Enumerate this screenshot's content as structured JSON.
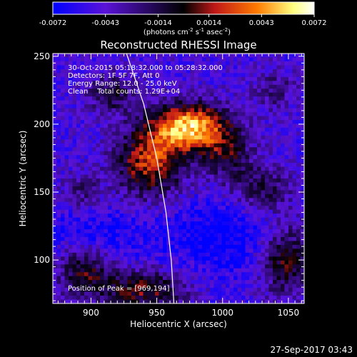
{
  "chart_data": {
    "type": "heatmap",
    "title": "Reconstructed RHESSI Image",
    "xlabel": "Heliocentric X (arcsec)",
    "ylabel": "Heliocentric Y (arcsec)",
    "xlim": [
      871,
      1062
    ],
    "ylim": [
      68,
      252
    ],
    "x_ticks": [
      "900",
      "950",
      "1000",
      "1050"
    ],
    "x_tick_values": [
      900,
      950,
      1000,
      1050
    ],
    "y_ticks": [
      "100",
      "150",
      "200",
      "250"
    ],
    "y_tick_values": [
      100,
      150,
      200,
      250
    ],
    "colorbar": {
      "tick_labels": [
        "-0.0072",
        "-0.0043",
        "-0.0014",
        "0.0014",
        "0.0043",
        "0.0072"
      ],
      "tick_values": [
        -0.0072,
        -0.0043,
        -0.0014,
        0.0014,
        0.0043,
        0.0072
      ],
      "range": [
        -0.0072,
        0.0072
      ],
      "colors": [
        "#0000ff",
        "#5a12d8",
        "#000000",
        "#c01818",
        "#ff7a00",
        "#ffff80",
        "#ffffff"
      ],
      "unit_parts": [
        "(photons cm",
        "-2",
        " s",
        "-1",
        " asec",
        "-2",
        ")"
      ]
    },
    "info_lines": [
      "30-Oct-2015 05:18:32.000 to 05:28:32.000",
      "Detectors: 1F 5F 7F, Att 0",
      "Energy Range: 12.0 - 25.0 keV",
      "Clean    Total counts: 1.29E+04"
    ],
    "peak_text": "Position of Peak = [969,194]",
    "peak": [
      969,
      194
    ],
    "limb_curve": [
      [
        927,
        252
      ],
      [
        940,
        215
      ],
      [
        950,
        175
      ],
      [
        957,
        135
      ],
      [
        961,
        100
      ],
      [
        963,
        68
      ]
    ],
    "background_value": -0.0048,
    "sources": [
      {
        "x": 975,
        "y": 198,
        "sx": 20,
        "sy": 12,
        "amp": 0.01
      },
      {
        "x": 945,
        "y": 172,
        "sx": 18,
        "sy": 18,
        "amp": 0.007
      },
      {
        "x": 915,
        "y": 222,
        "sx": 12,
        "sy": 10,
        "amp": 0.004
      },
      {
        "x": 1003,
        "y": 178,
        "sx": 14,
        "sy": 14,
        "amp": 0.004
      },
      {
        "x": 1030,
        "y": 152,
        "sx": 16,
        "sy": 12,
        "amp": 0.0035
      },
      {
        "x": 1048,
        "y": 100,
        "sx": 14,
        "sy": 18,
        "amp": 0.005
      },
      {
        "x": 940,
        "y": 78,
        "sx": 22,
        "sy": 10,
        "amp": 0.0055
      },
      {
        "x": 895,
        "y": 92,
        "sx": 14,
        "sy": 14,
        "amp": 0.0045
      },
      {
        "x": 893,
        "y": 150,
        "sx": 10,
        "sy": 10,
        "amp": 0.0025
      },
      {
        "x": 1040,
        "y": 225,
        "sx": 12,
        "sy": 10,
        "amp": 0.0025
      }
    ],
    "negative_regions": [
      {
        "x": 905,
        "y": 120,
        "sx": 30,
        "sy": 14,
        "amp": -0.002
      },
      {
        "x": 1000,
        "y": 118,
        "sx": 30,
        "sy": 20,
        "amp": -0.0025
      }
    ]
  },
  "timestamp": "27-Sep-2017 03:43"
}
